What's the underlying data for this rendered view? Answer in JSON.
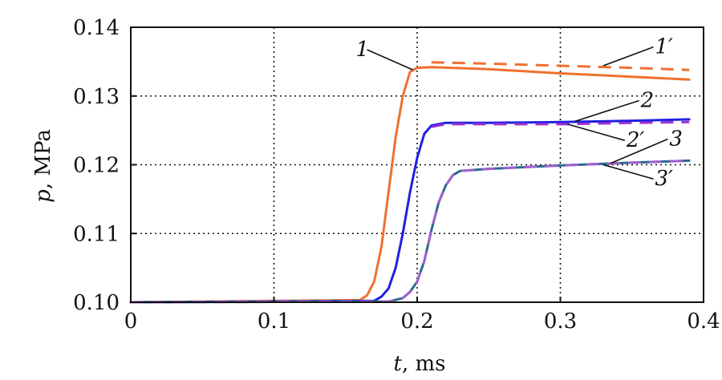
{
  "chart_data": {
    "type": "line",
    "xlabel_var": "t",
    "xlabel_unit": ", ms",
    "ylabel_var": "p",
    "ylabel_unit": ", MPa",
    "xlim": [
      0,
      0.4
    ],
    "ylim": [
      0.1,
      0.14
    ],
    "xticks": [
      0,
      0.1,
      0.2,
      0.3,
      0.4
    ],
    "xtick_labels": [
      "0",
      "0.1",
      "0.2",
      "0.3",
      "0.4"
    ],
    "yticks": [
      0.1,
      0.11,
      0.12,
      0.13,
      0.14
    ],
    "ytick_labels": [
      "0.10",
      "0.11",
      "0.12",
      "0.13",
      "0.14"
    ],
    "grid": true,
    "series": [
      {
        "name": "1",
        "style": "solid",
        "color": "#f07030",
        "x": [
          0,
          0.16,
          0.165,
          0.17,
          0.175,
          0.18,
          0.185,
          0.19,
          0.195,
          0.2,
          0.21,
          0.25,
          0.3,
          0.35,
          0.39
        ],
        "y": [
          0.1,
          0.1003,
          0.101,
          0.103,
          0.108,
          0.116,
          0.124,
          0.13,
          0.1335,
          0.1341,
          0.1342,
          0.1339,
          0.1333,
          0.1328,
          0.1324
        ]
      },
      {
        "name": "1′",
        "style": "dashed",
        "color": "#f07030",
        "x": [
          0.21,
          0.25,
          0.3,
          0.35,
          0.39
        ],
        "y": [
          0.1349,
          0.1347,
          0.1344,
          0.1341,
          0.1338
        ]
      },
      {
        "name": "2",
        "style": "solid",
        "color": "#2020e0",
        "x": [
          0,
          0.17,
          0.175,
          0.18,
          0.185,
          0.19,
          0.195,
          0.2,
          0.205,
          0.21,
          0.22,
          0.25,
          0.3,
          0.35,
          0.39
        ],
        "y": [
          0.1,
          0.1002,
          0.1008,
          0.102,
          0.105,
          0.11,
          0.116,
          0.121,
          0.1245,
          0.1257,
          0.1261,
          0.1261,
          0.1262,
          0.1264,
          0.1266
        ]
      },
      {
        "name": "2′",
        "style": "dashed",
        "color": "#9a30d0",
        "x": [
          0.21,
          0.22,
          0.25,
          0.3,
          0.35,
          0.39
        ],
        "y": [
          0.1255,
          0.1259,
          0.1259,
          0.1259,
          0.1261,
          0.1262
        ]
      },
      {
        "name": "3",
        "style": "solid",
        "color": "#2a6a90",
        "x": [
          0,
          0.18,
          0.19,
          0.195,
          0.2,
          0.205,
          0.21,
          0.215,
          0.22,
          0.225,
          0.23,
          0.25,
          0.3,
          0.35,
          0.39
        ],
        "y": [
          0.1,
          0.1001,
          0.1006,
          0.1015,
          0.103,
          0.106,
          0.1105,
          0.1145,
          0.117,
          0.1185,
          0.1191,
          0.1194,
          0.1199,
          0.1203,
          0.1206
        ]
      },
      {
        "name": "3′",
        "style": "dashed",
        "color": "#a060d0",
        "x": [
          0,
          0.18,
          0.19,
          0.195,
          0.2,
          0.205,
          0.21,
          0.215,
          0.22,
          0.225,
          0.23,
          0.25,
          0.3,
          0.35,
          0.39
        ],
        "y": [
          0.1,
          0.1001,
          0.1006,
          0.1015,
          0.103,
          0.106,
          0.1105,
          0.1145,
          0.117,
          0.1185,
          0.1191,
          0.1194,
          0.1199,
          0.1203,
          0.1206
        ]
      }
    ],
    "annotations": [
      {
        "text": "1",
        "label_at": [
          0.165,
          0.1358
        ],
        "points_to": [
          0.197,
          0.1338
        ]
      },
      {
        "text": "1′",
        "label_at": [
          0.365,
          0.1362
        ],
        "points_to": [
          0.33,
          0.1344
        ]
      },
      {
        "text": "2",
        "label_at": [
          0.355,
          0.1284
        ],
        "points_to": [
          0.31,
          0.1263
        ]
      },
      {
        "text": "2′",
        "label_at": [
          0.345,
          0.1226
        ],
        "points_to": [
          0.305,
          0.1259
        ]
      },
      {
        "text": "3",
        "label_at": [
          0.375,
          0.1228
        ],
        "points_to": [
          0.335,
          0.1202
        ]
      },
      {
        "text": "3′",
        "label_at": [
          0.365,
          0.117
        ],
        "points_to": [
          0.33,
          0.12
        ]
      }
    ]
  }
}
